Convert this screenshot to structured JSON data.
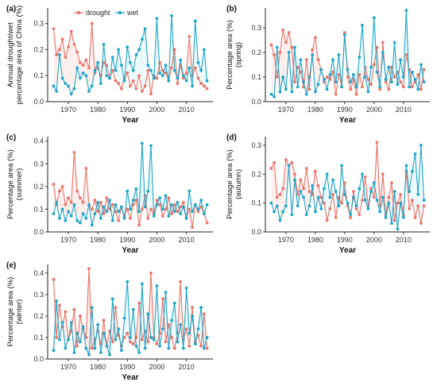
{
  "legend": {
    "items": [
      {
        "label": "drought",
        "color": "#E8756A"
      },
      {
        "label": "wet",
        "color": "#1FA5C7"
      }
    ]
  },
  "colors": {
    "drought": "#E8756A",
    "wet": "#1FA5C7",
    "drought_ribbon": "#F4B6AF",
    "wet_ribbon": "#A8E6F2"
  },
  "chart_data": [
    {
      "type": "line",
      "panel": "(a)",
      "xlabel": "Year",
      "ylabel": [
        "Annual drought/wet",
        "percentage area of China (%)"
      ],
      "xlim": [
        1963,
        2019
      ],
      "ylim": [
        0,
        0.36
      ],
      "xticks": [
        1970,
        1980,
        1990,
        2000,
        2010
      ],
      "yticks": [
        0.0,
        0.1,
        0.2,
        0.3
      ],
      "x": [
        1965,
        1966,
        1967,
        1968,
        1969,
        1970,
        1971,
        1972,
        1973,
        1974,
        1975,
        1976,
        1977,
        1978,
        1979,
        1980,
        1981,
        1982,
        1983,
        1984,
        1985,
        1986,
        1987,
        1988,
        1989,
        1990,
        1991,
        1992,
        1993,
        1994,
        1995,
        1996,
        1997,
        1998,
        1999,
        2000,
        2001,
        2002,
        2003,
        2004,
        2005,
        2006,
        2007,
        2008,
        2009,
        2010,
        2011,
        2012,
        2013,
        2014,
        2015,
        2016,
        2017
      ],
      "series": [
        {
          "name": "drought",
          "values": [
            0.28,
            0.18,
            0.2,
            0.24,
            0.17,
            0.21,
            0.27,
            0.22,
            0.19,
            0.15,
            0.14,
            0.16,
            0.13,
            0.3,
            0.11,
            0.13,
            0.1,
            0.15,
            0.14,
            0.09,
            0.12,
            0.08,
            0.07,
            0.05,
            0.09,
            0.11,
            0.06,
            0.08,
            0.05,
            0.1,
            0.04,
            0.06,
            0.12,
            0.03,
            0.1,
            0.09,
            0.15,
            0.12,
            0.11,
            0.08,
            0.13,
            0.2,
            0.07,
            0.14,
            0.09,
            0.11,
            0.25,
            0.1,
            0.13,
            0.09,
            0.07,
            0.06,
            0.05
          ]
        },
        {
          "name": "wet",
          "values": [
            0.06,
            0.04,
            0.18,
            0.09,
            0.07,
            0.06,
            0.03,
            0.05,
            0.13,
            0.09,
            0.11,
            0.1,
            0.04,
            0.06,
            0.12,
            0.15,
            0.07,
            0.22,
            0.1,
            0.09,
            0.17,
            0.12,
            0.2,
            0.14,
            0.08,
            0.21,
            0.15,
            0.12,
            0.18,
            0.2,
            0.24,
            0.28,
            0.14,
            0.12,
            0.09,
            0.32,
            0.11,
            0.1,
            0.14,
            0.08,
            0.33,
            0.12,
            0.09,
            0.16,
            0.1,
            0.08,
            0.13,
            0.06,
            0.31,
            0.15,
            0.12,
            0.2,
            0.08
          ]
        }
      ]
    },
    {
      "type": "line",
      "panel": "(b)",
      "xlabel": "Year",
      "ylabel": [
        "Percentage area (%)",
        "(spring)"
      ],
      "xlim": [
        1963,
        2019
      ],
      "ylim": [
        0,
        0.38
      ],
      "xticks": [
        1970,
        1980,
        1990,
        2000,
        2010
      ],
      "yticks": [
        0.0,
        0.1,
        0.2,
        0.3
      ],
      "x": [
        1965,
        1966,
        1967,
        1968,
        1969,
        1970,
        1971,
        1972,
        1973,
        1974,
        1975,
        1976,
        1977,
        1978,
        1979,
        1980,
        1981,
        1982,
        1983,
        1984,
        1985,
        1986,
        1987,
        1988,
        1989,
        1990,
        1991,
        1992,
        1993,
        1994,
        1995,
        1996,
        1997,
        1998,
        1999,
        2000,
        2001,
        2002,
        2003,
        2004,
        2005,
        2006,
        2007,
        2008,
        2009,
        2010,
        2011,
        2012,
        2013,
        2014,
        2015,
        2016,
        2017
      ],
      "series": [
        {
          "name": "drought",
          "values": [
            0.23,
            0.19,
            0.1,
            0.2,
            0.29,
            0.24,
            0.28,
            0.22,
            0.08,
            0.14,
            0.12,
            0.06,
            0.17,
            0.05,
            0.21,
            0.26,
            0.17,
            0.13,
            0.08,
            0.1,
            0.09,
            0.12,
            0.03,
            0.11,
            0.06,
            0.28,
            0.1,
            0.05,
            0.09,
            0.03,
            0.11,
            0.06,
            0.14,
            0.09,
            0.07,
            0.15,
            0.22,
            0.05,
            0.24,
            0.08,
            0.05,
            0.14,
            0.1,
            0.12,
            0.08,
            0.06,
            0.19,
            0.13,
            0.06,
            0.08,
            0.11,
            0.05,
            0.13
          ]
        },
        {
          "name": "wet",
          "values": [
            0.03,
            0.02,
            0.22,
            0.04,
            0.1,
            0.05,
            0.2,
            0.04,
            0.22,
            0.06,
            0.17,
            0.08,
            0.03,
            0.1,
            0.19,
            0.04,
            0.07,
            0.13,
            0.09,
            0.05,
            0.11,
            0.17,
            0.08,
            0.19,
            0.06,
            0.27,
            0.13,
            0.08,
            0.11,
            0.06,
            0.18,
            0.31,
            0.1,
            0.04,
            0.14,
            0.34,
            0.12,
            0.06,
            0.2,
            0.09,
            0.14,
            0.08,
            0.24,
            0.07,
            0.17,
            0.1,
            0.37,
            0.06,
            0.12,
            0.09,
            0.05,
            0.15,
            0.08
          ]
        }
      ]
    },
    {
      "type": "line",
      "panel": "(c)",
      "xlabel": "Year",
      "ylabel": [
        "Percentage area (%)",
        "(summer)"
      ],
      "xlim": [
        1963,
        2019
      ],
      "ylim": [
        0,
        0.42
      ],
      "xticks": [
        1970,
        1980,
        1990,
        2000,
        2010
      ],
      "yticks": [
        0.0,
        0.1,
        0.2,
        0.3,
        0.4
      ],
      "x": [
        1965,
        1966,
        1967,
        1968,
        1969,
        1970,
        1971,
        1972,
        1973,
        1974,
        1975,
        1976,
        1977,
        1978,
        1979,
        1980,
        1981,
        1982,
        1983,
        1984,
        1985,
        1986,
        1987,
        1988,
        1989,
        1990,
        1991,
        1992,
        1993,
        1994,
        1995,
        1996,
        1997,
        1998,
        1999,
        2000,
        2001,
        2002,
        2003,
        2004,
        2005,
        2006,
        2007,
        2008,
        2009,
        2010,
        2011,
        2012,
        2013,
        2014,
        2015,
        2016,
        2017
      ],
      "series": [
        {
          "name": "drought",
          "values": [
            0.21,
            0.12,
            0.18,
            0.2,
            0.12,
            0.15,
            0.13,
            0.35,
            0.18,
            0.15,
            0.13,
            0.28,
            0.12,
            0.1,
            0.14,
            0.09,
            0.13,
            0.08,
            0.15,
            0.1,
            0.12,
            0.09,
            0.05,
            0.11,
            0.07,
            0.1,
            0.06,
            0.12,
            0.14,
            0.03,
            0.1,
            0.16,
            0.06,
            0.1,
            0.08,
            0.14,
            0.12,
            0.07,
            0.1,
            0.15,
            0.08,
            0.12,
            0.09,
            0.11,
            0.13,
            0.06,
            0.1,
            0.02,
            0.12,
            0.09,
            0.11,
            0.08,
            0.04
          ]
        },
        {
          "name": "wet",
          "values": [
            0.08,
            0.13,
            0.06,
            0.1,
            0.05,
            0.09,
            0.07,
            0.12,
            0.05,
            0.04,
            0.08,
            0.06,
            0.12,
            0.03,
            0.08,
            0.13,
            0.06,
            0.11,
            0.09,
            0.14,
            0.05,
            0.12,
            0.09,
            0.11,
            0.06,
            0.18,
            0.1,
            0.14,
            0.19,
            0.09,
            0.39,
            0.11,
            0.18,
            0.38,
            0.07,
            0.12,
            0.15,
            0.1,
            0.16,
            0.07,
            0.12,
            0.09,
            0.13,
            0.08,
            0.11,
            0.06,
            0.18,
            0.09,
            0.12,
            0.1,
            0.14,
            0.08,
            0.12
          ]
        }
      ]
    },
    {
      "type": "line",
      "panel": "(d)",
      "xlabel": "Year",
      "ylabel": [
        "Percentage area (%)",
        "(autumn)"
      ],
      "xlim": [
        1963,
        2019
      ],
      "ylim": [
        0,
        0.33
      ],
      "xticks": [
        1970,
        1980,
        1990,
        2000,
        2010
      ],
      "yticks": [
        0.0,
        0.1,
        0.2,
        0.3
      ],
      "x": [
        1965,
        1966,
        1967,
        1968,
        1969,
        1970,
        1971,
        1972,
        1973,
        1974,
        1975,
        1976,
        1977,
        1978,
        1979,
        1980,
        1981,
        1982,
        1983,
        1984,
        1985,
        1986,
        1987,
        1988,
        1989,
        1990,
        1991,
        1992,
        1993,
        1994,
        1995,
        1996,
        1997,
        1998,
        1999,
        2000,
        2001,
        2002,
        2003,
        2004,
        2005,
        2006,
        2007,
        2008,
        2009,
        2010,
        2011,
        2012,
        2013,
        2014,
        2015,
        2016,
        2017
      ],
      "series": [
        {
          "name": "drought",
          "values": [
            0.22,
            0.24,
            0.12,
            0.13,
            0.15,
            0.25,
            0.23,
            0.24,
            0.2,
            0.13,
            0.18,
            0.15,
            0.22,
            0.14,
            0.13,
            0.21,
            0.16,
            0.12,
            0.1,
            0.04,
            0.08,
            0.13,
            0.05,
            0.12,
            0.1,
            0.17,
            0.09,
            0.05,
            0.14,
            0.08,
            0.06,
            0.11,
            0.19,
            0.09,
            0.15,
            0.12,
            0.31,
            0.09,
            0.2,
            0.06,
            0.12,
            0.17,
            0.04,
            0.1,
            0.13,
            0.06,
            0.21,
            0.08,
            0.11,
            0.05,
            0.09,
            0.03,
            0.09
          ]
        },
        {
          "name": "wet",
          "values": [
            0.1,
            0.07,
            0.09,
            0.04,
            0.07,
            0.09,
            0.23,
            0.06,
            0.18,
            0.09,
            0.14,
            0.12,
            0.06,
            0.09,
            0.16,
            0.07,
            0.12,
            0.08,
            0.15,
            0.2,
            0.12,
            0.18,
            0.14,
            0.09,
            0.23,
            0.13,
            0.1,
            0.06,
            0.12,
            0.09,
            0.15,
            0.2,
            0.11,
            0.08,
            0.14,
            0.17,
            0.11,
            0.07,
            0.12,
            0.05,
            0.1,
            0.03,
            0.14,
            0.01,
            0.1,
            0.05,
            0.23,
            0.14,
            0.21,
            0.27,
            0.13,
            0.3,
            0.11
          ]
        }
      ]
    },
    {
      "type": "line",
      "panel": "(e)",
      "xlabel": "Year",
      "ylabel": [
        "Percentage area (%)",
        "(winter)"
      ],
      "xlim": [
        1963,
        2019
      ],
      "ylim": [
        0,
        0.44
      ],
      "xticks": [
        1970,
        1980,
        1990,
        2000,
        2010
      ],
      "yticks": [
        0.0,
        0.1,
        0.2,
        0.3,
        0.4
      ],
      "x": [
        1965,
        1966,
        1967,
        1968,
        1969,
        1970,
        1971,
        1972,
        1973,
        1974,
        1975,
        1976,
        1977,
        1978,
        1979,
        1980,
        1981,
        1982,
        1983,
        1984,
        1985,
        1986,
        1987,
        1988,
        1989,
        1990,
        1991,
        1992,
        1993,
        1994,
        1995,
        1996,
        1997,
        1998,
        1999,
        2000,
        2001,
        2002,
        2003,
        2004,
        2005,
        2006,
        2007,
        2008,
        2009,
        2010,
        2011,
        2012,
        2013,
        2014,
        2015,
        2016,
        2017
      ],
      "series": [
        {
          "name": "drought",
          "values": [
            0.37,
            0.1,
            0.25,
            0.15,
            0.22,
            0.09,
            0.13,
            0.23,
            0.06,
            0.2,
            0.14,
            0.1,
            0.42,
            0.05,
            0.09,
            0.13,
            0.07,
            0.18,
            0.06,
            0.13,
            0.08,
            0.24,
            0.11,
            0.06,
            0.1,
            0.12,
            0.08,
            0.07,
            0.1,
            0.26,
            0.09,
            0.13,
            0.08,
            0.4,
            0.1,
            0.07,
            0.12,
            0.28,
            0.08,
            0.16,
            0.1,
            0.05,
            0.12,
            0.36,
            0.09,
            0.14,
            0.06,
            0.24,
            0.08,
            0.11,
            0.06,
            0.21,
            0.05
          ]
        },
        {
          "name": "wet",
          "values": [
            0.04,
            0.27,
            0.09,
            0.17,
            0.05,
            0.09,
            0.17,
            0.03,
            0.12,
            0.08,
            0.15,
            0.05,
            0.02,
            0.24,
            0.05,
            0.16,
            0.03,
            0.12,
            0.06,
            0.02,
            0.28,
            0.09,
            0.14,
            0.04,
            0.19,
            0.36,
            0.1,
            0.23,
            0.06,
            0.03,
            0.35,
            0.05,
            0.21,
            0.1,
            0.09,
            0.34,
            0.06,
            0.14,
            0.31,
            0.05,
            0.18,
            0.26,
            0.08,
            0.16,
            0.05,
            0.33,
            0.12,
            0.2,
            0.07,
            0.14,
            0.24,
            0.05,
            0.1
          ]
        }
      ]
    }
  ]
}
